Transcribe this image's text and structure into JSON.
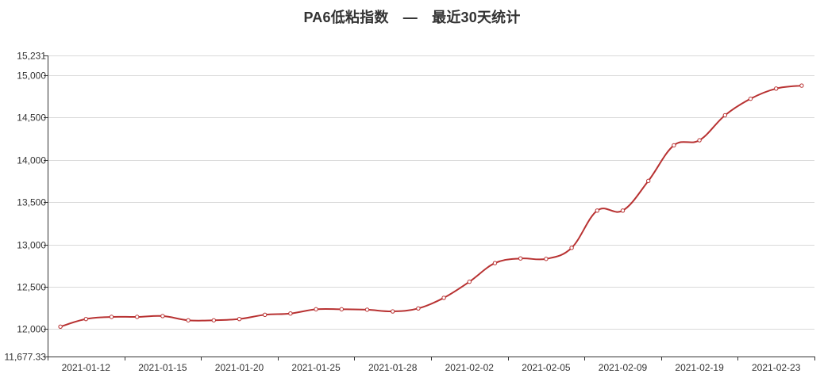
{
  "chart_data": {
    "type": "line",
    "title": "PA6低粘指数　—　最近30天统计",
    "x_axis_labels": [
      "2021-01-12",
      "2021-01-15",
      "2021-01-20",
      "2021-01-25",
      "2021-01-28",
      "2021-02-02",
      "2021-02-05",
      "2021-02-09",
      "2021-02-19",
      "2021-02-23"
    ],
    "y_ticks": [
      "11,677.33",
      "12,000",
      "12,500",
      "13,000",
      "13,500",
      "14,000",
      "14,500",
      "15,000",
      "15,231"
    ],
    "ylim": [
      11677.33,
      15231
    ],
    "series": [
      {
        "color": "#b83232",
        "values": [
          12030,
          12120,
          12145,
          12145,
          12155,
          12105,
          12105,
          12120,
          12170,
          12185,
          12235,
          12235,
          12230,
          12210,
          12245,
          12370,
          12560,
          12780,
          12835,
          12830,
          12960,
          13400,
          13400,
          13750,
          14170,
          14230,
          14525,
          14720,
          14840,
          14875
        ]
      }
    ],
    "grid": true,
    "legend": false
  }
}
